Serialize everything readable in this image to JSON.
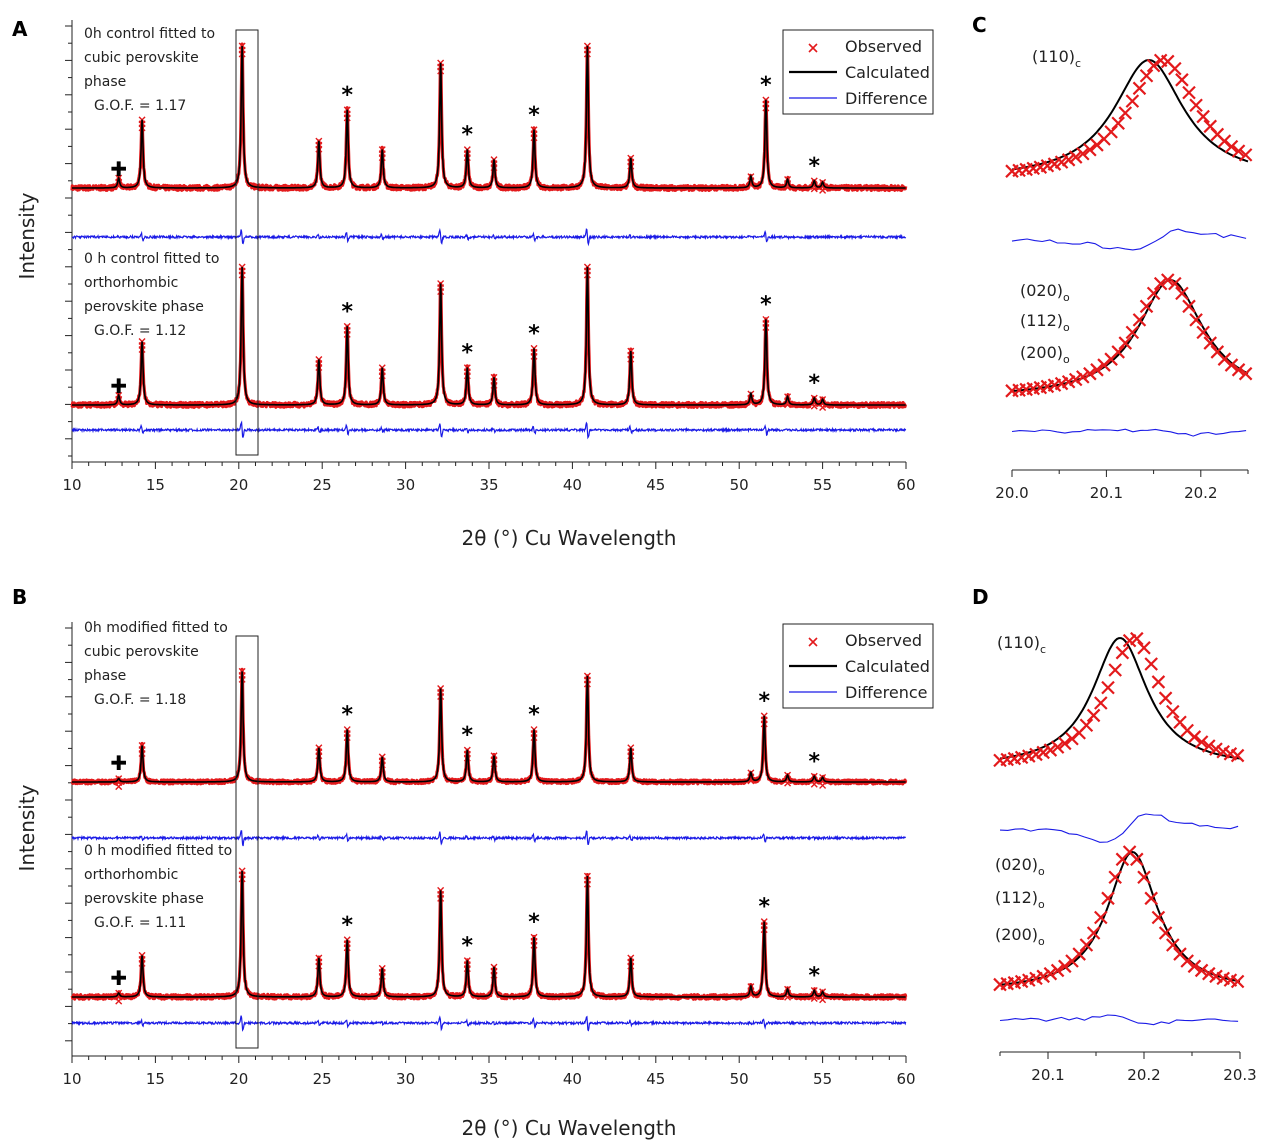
{
  "colors": {
    "observed": "#e31a1c",
    "calculated": "#000000",
    "difference": "#1a1ae6"
  },
  "legend": [
    "Observed",
    "Calculated",
    "Difference"
  ],
  "chart_data": [
    {
      "panel": "A",
      "type": "line",
      "xlabel": "2θ (°) Cu Wavelength",
      "ylabel": "Intensity",
      "xlim": [
        10,
        60
      ],
      "x_ticks": [
        "10",
        "15",
        "20",
        "25",
        "30",
        "35",
        "40",
        "45",
        "50",
        "55",
        "60"
      ],
      "series": [
        {
          "name": "Observed"
        },
        {
          "name": "Calculated"
        },
        {
          "name": "Difference"
        }
      ],
      "traces": [
        {
          "annotation": [
            "0h control fitted to",
            "cubic perovskite",
            "phase",
            "G.O.F. = 1.17"
          ],
          "peaks": [
            [
              12.8,
              0.07
            ],
            [
              14.2,
              0.48
            ],
            [
              20.2,
              1.0
            ],
            [
              24.8,
              0.33
            ],
            [
              26.5,
              0.55
            ],
            [
              28.6,
              0.27
            ],
            [
              32.1,
              0.88
            ],
            [
              33.7,
              0.27
            ],
            [
              35.3,
              0.2
            ],
            [
              37.7,
              0.41
            ],
            [
              40.9,
              1.0
            ],
            [
              43.5,
              0.21
            ],
            [
              50.7,
              0.08
            ],
            [
              51.6,
              0.62
            ],
            [
              52.9,
              0.06
            ],
            [
              54.5,
              0.05
            ],
            [
              55.0,
              0.04
            ]
          ],
          "star_positions": [
            26.5,
            33.7,
            37.7,
            51.6,
            54.5
          ],
          "cross_position": 12.8
        },
        {
          "annotation": [
            "0 h control fitted to",
            "orthorhombic",
            "perovskite phase",
            "G.O.F. = 1.12"
          ],
          "peaks": [
            [
              12.8,
              0.07
            ],
            [
              14.2,
              0.46
            ],
            [
              20.2,
              1.0
            ],
            [
              24.8,
              0.33
            ],
            [
              26.5,
              0.57
            ],
            [
              28.6,
              0.27
            ],
            [
              32.1,
              0.88
            ],
            [
              33.7,
              0.27
            ],
            [
              35.3,
              0.2
            ],
            [
              37.7,
              0.41
            ],
            [
              40.9,
              1.0
            ],
            [
              43.5,
              0.39
            ],
            [
              50.7,
              0.08
            ],
            [
              51.6,
              0.62
            ],
            [
              52.9,
              0.06
            ],
            [
              54.5,
              0.05
            ],
            [
              55.0,
              0.04
            ]
          ],
          "star_positions": [
            26.5,
            33.7,
            37.7,
            51.6,
            54.5
          ],
          "cross_position": 12.8
        }
      ]
    },
    {
      "panel": "B",
      "type": "line",
      "xlabel": "2θ (°) Cu Wavelength",
      "ylabel": "Intensity",
      "xlim": [
        10,
        60
      ],
      "x_ticks": [
        "10",
        "15",
        "20",
        "25",
        "30",
        "35",
        "40",
        "45",
        "50",
        "55",
        "60"
      ],
      "series": [
        {
          "name": "Observed"
        },
        {
          "name": "Calculated"
        },
        {
          "name": "Difference"
        }
      ],
      "traces": [
        {
          "annotation": [
            "0h modified fitted to",
            "cubic perovskite",
            "phase",
            "G.O.F. = 1.18"
          ],
          "peaks": [
            [
              12.8,
              0.03
            ],
            [
              14.2,
              0.32
            ],
            [
              20.2,
              0.97
            ],
            [
              24.8,
              0.3
            ],
            [
              26.5,
              0.46
            ],
            [
              28.6,
              0.22
            ],
            [
              32.1,
              0.82
            ],
            [
              33.7,
              0.28
            ],
            [
              35.3,
              0.23
            ],
            [
              37.7,
              0.46
            ],
            [
              40.9,
              0.93
            ],
            [
              43.5,
              0.3
            ],
            [
              50.7,
              0.08
            ],
            [
              51.5,
              0.58
            ],
            [
              52.9,
              0.06
            ],
            [
              54.5,
              0.05
            ],
            [
              55.0,
              0.04
            ]
          ],
          "star_positions": [
            26.5,
            33.7,
            37.7,
            51.5,
            54.5
          ],
          "cross_position": 12.8
        },
        {
          "annotation": [
            "0 h modified fitted to",
            "orthorhombic",
            "perovskite phase",
            "G.O.F. = 1.11"
          ],
          "peaks": [
            [
              12.8,
              0.03
            ],
            [
              14.2,
              0.32
            ],
            [
              20.2,
              0.97
            ],
            [
              24.8,
              0.3
            ],
            [
              26.5,
              0.44
            ],
            [
              28.6,
              0.22
            ],
            [
              32.1,
              0.82
            ],
            [
              33.7,
              0.28
            ],
            [
              35.3,
              0.23
            ],
            [
              37.7,
              0.46
            ],
            [
              40.9,
              0.93
            ],
            [
              43.5,
              0.3
            ],
            [
              50.7,
              0.08
            ],
            [
              51.5,
              0.58
            ],
            [
              52.9,
              0.06
            ],
            [
              54.5,
              0.05
            ],
            [
              55.0,
              0.04
            ]
          ],
          "star_positions": [
            26.5,
            33.7,
            37.7,
            51.5,
            54.5
          ],
          "cross_position": 12.8
        }
      ]
    },
    {
      "panel": "C",
      "type": "scatter",
      "xlim": [
        20.0,
        20.25
      ],
      "x_ticks": [
        "20.0",
        "20.1",
        "20.2"
      ],
      "series": [
        {
          "name": "Observed"
        },
        {
          "name": "Calculated"
        },
        {
          "name": "Difference"
        }
      ],
      "subplots": [
        {
          "hkl": [
            [
              "(110)",
              "c"
            ]
          ],
          "calc_center": 20.145,
          "calc_width": 0.045,
          "obs_center": 20.16,
          "obs_width": 0.045
        },
        {
          "hkl": [
            [
              "(020)",
              "o"
            ],
            [
              "(112)",
              "o"
            ],
            [
              "(200)",
              "o"
            ]
          ],
          "calc_center": 20.168,
          "calc_width": 0.042,
          "obs_center": 20.165,
          "obs_width": 0.042
        }
      ]
    },
    {
      "panel": "D",
      "type": "scatter",
      "xlim": [
        20.05,
        20.3
      ],
      "x_ticks": [
        "20.1",
        "20.2",
        "20.3"
      ],
      "series": [
        {
          "name": "Observed"
        },
        {
          "name": "Calculated"
        },
        {
          "name": "Difference"
        }
      ],
      "subplots": [
        {
          "hkl": [
            [
              "(110)",
              "c"
            ]
          ],
          "calc_center": 20.175,
          "calc_width": 0.035,
          "obs_center": 20.19,
          "obs_width": 0.035
        },
        {
          "hkl": [
            [
              "(020)",
              "o"
            ],
            [
              "(112)",
              "o"
            ],
            [
              "(200)",
              "o"
            ]
          ],
          "calc_center": 20.188,
          "calc_width": 0.032,
          "obs_center": 20.185,
          "obs_width": 0.032
        }
      ]
    }
  ]
}
